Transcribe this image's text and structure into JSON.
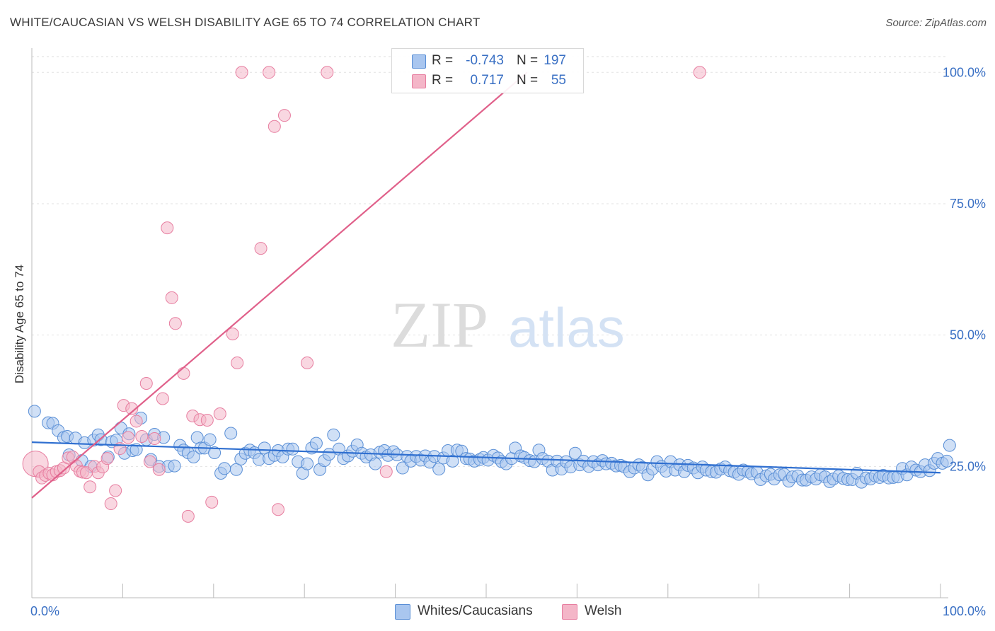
{
  "header": {
    "title": "WHITE/CAUCASIAN VS WELSH DISABILITY AGE 65 TO 74 CORRELATION CHART",
    "source": "Source: ZipAtlas.com"
  },
  "watermark": {
    "zip": "ZIP",
    "atlas": "atlas"
  },
  "legend_top": {
    "rows": [
      {
        "r_label": "R =",
        "r_value": "-0.743",
        "n_label": "N =",
        "n_value": "197",
        "color": "#a9c6ef"
      },
      {
        "r_label": "R =",
        "r_value": "0.717",
        "n_label": "N =",
        "n_value": "55",
        "color": "#f4b6c8"
      }
    ]
  },
  "legend_bottom": {
    "items": [
      {
        "label": "Whites/Caucasians",
        "color": "#a9c6ef"
      },
      {
        "label": "Welsh",
        "color": "#f4b6c8"
      }
    ]
  },
  "chart_data": {
    "type": "scatter",
    "title": "WHITE/CAUCASIAN VS WELSH DISABILITY AGE 65 TO 74 CORRELATION CHART",
    "xlabel": "",
    "ylabel": "Disability Age 65 to 74",
    "xlim": [
      0,
      100
    ],
    "ylim": [
      0,
      103
    ],
    "x_tick_labels": [
      {
        "value": 0,
        "label": "0.0%"
      },
      {
        "value": 100,
        "label": "100.0%"
      }
    ],
    "y_tick_labels": [
      {
        "value": 25,
        "label": "25.0%"
      },
      {
        "value": 50,
        "label": "50.0%"
      },
      {
        "value": 75,
        "label": "75.0%"
      },
      {
        "value": 100,
        "label": "100.0%"
      }
    ],
    "grid": "horizontal dashed",
    "legend_position": "top-center",
    "colors": {
      "whites_fill": "#a9c6ef",
      "whites_stroke": "#5a8fd6",
      "whites_line": "#2f6fd0",
      "welsh_fill": "#f4b6c8",
      "welsh_stroke": "#e77ea0",
      "welsh_line": "#e0608a",
      "axis_text": "#3a70c4"
    },
    "series": [
      {
        "name": "Whites/Caucasians",
        "r": -0.743,
        "n": 197,
        "trend": {
          "x": [
            0,
            100
          ],
          "y": [
            29.6,
            23.8
          ]
        },
        "points": [
          [
            0.3,
            35.5
          ],
          [
            1.8,
            33.3
          ],
          [
            2.3,
            33.2
          ],
          [
            2.9,
            31.8
          ],
          [
            3.5,
            30.5
          ],
          [
            3.9,
            30.7
          ],
          [
            4.1,
            27.2
          ],
          [
            4.8,
            30.4
          ],
          [
            5.5,
            26.1
          ],
          [
            5.8,
            29.5
          ],
          [
            6.5,
            25.0
          ],
          [
            6.8,
            30.0
          ],
          [
            7.3,
            31.0
          ],
          [
            7.6,
            30.1
          ],
          [
            8.4,
            26.8
          ],
          [
            8.8,
            29.7
          ],
          [
            9.3,
            30.0
          ],
          [
            9.8,
            32.3
          ],
          [
            10.2,
            27.5
          ],
          [
            10.7,
            31.2
          ],
          [
            11.1,
            28.0
          ],
          [
            11.5,
            28.2
          ],
          [
            12.0,
            34.2
          ],
          [
            12.6,
            30.1
          ],
          [
            13.1,
            26.3
          ],
          [
            13.5,
            31.1
          ],
          [
            14.0,
            25.0
          ],
          [
            14.5,
            30.5
          ],
          [
            15.0,
            25.0
          ],
          [
            15.7,
            25.1
          ],
          [
            16.3,
            29.0
          ],
          [
            16.7,
            28.1
          ],
          [
            17.2,
            27.6
          ],
          [
            17.8,
            26.8
          ],
          [
            18.2,
            30.5
          ],
          [
            18.6,
            28.5
          ],
          [
            19.0,
            28.5
          ],
          [
            19.6,
            30.1
          ],
          [
            20.1,
            27.6
          ],
          [
            20.8,
            23.7
          ],
          [
            21.2,
            24.6
          ],
          [
            21.9,
            31.3
          ],
          [
            22.5,
            24.4
          ],
          [
            23.0,
            26.4
          ],
          [
            23.5,
            27.5
          ],
          [
            24.0,
            28.1
          ],
          [
            24.5,
            27.6
          ],
          [
            25.0,
            26.3
          ],
          [
            25.6,
            28.5
          ],
          [
            26.1,
            26.5
          ],
          [
            26.7,
            27.1
          ],
          [
            27.1,
            28.0
          ],
          [
            27.6,
            26.8
          ],
          [
            28.2,
            28.3
          ],
          [
            28.7,
            28.3
          ],
          [
            29.3,
            25.9
          ],
          [
            29.8,
            23.7
          ],
          [
            30.3,
            25.5
          ],
          [
            30.8,
            28.5
          ],
          [
            31.3,
            29.4
          ],
          [
            31.7,
            24.4
          ],
          [
            32.2,
            26.1
          ],
          [
            32.7,
            27.3
          ],
          [
            33.2,
            31.0
          ],
          [
            33.8,
            28.3
          ],
          [
            34.3,
            26.5
          ],
          [
            34.8,
            27.0
          ],
          [
            35.3,
            27.9
          ],
          [
            35.8,
            29.1
          ],
          [
            36.3,
            27.5
          ],
          [
            36.8,
            26.8
          ],
          [
            37.3,
            27.2
          ],
          [
            37.8,
            25.5
          ],
          [
            38.3,
            27.7
          ],
          [
            38.8,
            28.0
          ],
          [
            39.2,
            27.1
          ],
          [
            39.8,
            27.8
          ],
          [
            40.2,
            27.2
          ],
          [
            40.8,
            24.7
          ],
          [
            41.3,
            26.9
          ],
          [
            41.7,
            26.0
          ],
          [
            42.3,
            26.9
          ],
          [
            42.8,
            26.2
          ],
          [
            43.3,
            27.0
          ],
          [
            43.8,
            25.8
          ],
          [
            44.3,
            26.9
          ],
          [
            44.8,
            24.5
          ],
          [
            45.3,
            26.6
          ],
          [
            45.8,
            28.0
          ],
          [
            46.3,
            26.0
          ],
          [
            46.8,
            28.1
          ],
          [
            47.3,
            27.9
          ],
          [
            47.8,
            26.5
          ],
          [
            48.2,
            26.4
          ],
          [
            48.7,
            26.0
          ],
          [
            49.3,
            26.3
          ],
          [
            49.7,
            26.7
          ],
          [
            50.2,
            26.2
          ],
          [
            50.8,
            27.1
          ],
          [
            51.3,
            26.6
          ],
          [
            51.7,
            25.9
          ],
          [
            52.2,
            25.5
          ],
          [
            52.8,
            26.5
          ],
          [
            53.2,
            28.5
          ],
          [
            53.8,
            27.0
          ],
          [
            54.2,
            26.7
          ],
          [
            54.8,
            26.1
          ],
          [
            55.3,
            25.9
          ],
          [
            55.8,
            28.1
          ],
          [
            56.2,
            26.5
          ],
          [
            56.8,
            26.0
          ],
          [
            57.3,
            24.3
          ],
          [
            57.8,
            26.0
          ],
          [
            58.3,
            24.5
          ],
          [
            58.8,
            25.9
          ],
          [
            59.3,
            24.9
          ],
          [
            59.8,
            27.5
          ],
          [
            60.3,
            25.3
          ],
          [
            60.7,
            26.0
          ],
          [
            61.3,
            25.0
          ],
          [
            61.8,
            25.9
          ],
          [
            62.3,
            25.3
          ],
          [
            62.8,
            26.1
          ],
          [
            63.2,
            25.5
          ],
          [
            63.8,
            25.6
          ],
          [
            64.3,
            25.1
          ],
          [
            64.8,
            25.2
          ],
          [
            65.2,
            24.9
          ],
          [
            65.8,
            24.0
          ],
          [
            66.3,
            24.7
          ],
          [
            66.8,
            25.3
          ],
          [
            67.2,
            24.8
          ],
          [
            67.8,
            23.4
          ],
          [
            68.3,
            24.5
          ],
          [
            68.8,
            25.9
          ],
          [
            69.3,
            25.0
          ],
          [
            69.8,
            24.1
          ],
          [
            70.3,
            25.9
          ],
          [
            70.8,
            24.3
          ],
          [
            71.3,
            25.3
          ],
          [
            71.8,
            24.0
          ],
          [
            72.2,
            25.2
          ],
          [
            72.8,
            24.7
          ],
          [
            73.3,
            23.8
          ],
          [
            73.8,
            24.9
          ],
          [
            74.2,
            24.3
          ],
          [
            74.8,
            24.0
          ],
          [
            75.3,
            23.9
          ],
          [
            75.8,
            24.5
          ],
          [
            76.3,
            24.9
          ],
          [
            76.8,
            24.2
          ],
          [
            77.3,
            23.9
          ],
          [
            77.8,
            23.5
          ],
          [
            78.3,
            24.3
          ],
          [
            78.8,
            24.0
          ],
          [
            79.2,
            23.6
          ],
          [
            79.8,
            23.9
          ],
          [
            80.2,
            22.5
          ],
          [
            80.8,
            23.2
          ],
          [
            81.3,
            23.5
          ],
          [
            81.7,
            22.6
          ],
          [
            82.3,
            23.4
          ],
          [
            82.8,
            23.5
          ],
          [
            83.3,
            22.2
          ],
          [
            83.7,
            23.0
          ],
          [
            84.3,
            23.2
          ],
          [
            84.8,
            22.4
          ],
          [
            85.2,
            22.4
          ],
          [
            85.8,
            23.0
          ],
          [
            86.3,
            22.6
          ],
          [
            86.8,
            23.4
          ],
          [
            87.3,
            23.0
          ],
          [
            87.8,
            22.1
          ],
          [
            88.2,
            22.6
          ],
          [
            88.8,
            23.2
          ],
          [
            89.3,
            22.7
          ],
          [
            89.8,
            22.5
          ],
          [
            90.3,
            22.5
          ],
          [
            90.8,
            23.7
          ],
          [
            91.3,
            22.0
          ],
          [
            91.8,
            22.8
          ],
          [
            92.3,
            22.6
          ],
          [
            92.8,
            23.2
          ],
          [
            93.3,
            22.9
          ],
          [
            93.7,
            23.3
          ],
          [
            94.3,
            22.8
          ],
          [
            94.8,
            22.9
          ],
          [
            95.3,
            23.0
          ],
          [
            95.8,
            24.6
          ],
          [
            96.3,
            23.4
          ],
          [
            96.8,
            24.9
          ],
          [
            97.3,
            24.3
          ],
          [
            97.8,
            24.0
          ],
          [
            98.3,
            25.3
          ],
          [
            98.8,
            24.2
          ],
          [
            99.3,
            25.6
          ],
          [
            99.7,
            26.5
          ],
          [
            100.2,
            25.6
          ],
          [
            100.7,
            26.0
          ],
          [
            101.0,
            29.0
          ]
        ]
      },
      {
        "name": "Welsh",
        "r": 0.717,
        "n": 55,
        "trend": {
          "x": [
            0,
            54.5
          ],
          "y": [
            19.0,
            100.0
          ]
        },
        "points": [
          [
            0.4,
            25.5
          ],
          [
            0.8,
            24.0
          ],
          [
            1.1,
            22.8
          ],
          [
            1.5,
            23.3
          ],
          [
            1.9,
            23.7
          ],
          [
            2.3,
            23.4
          ],
          [
            2.7,
            24.0
          ],
          [
            3.1,
            24.2
          ],
          [
            3.5,
            24.7
          ],
          [
            4.0,
            26.6
          ],
          [
            4.5,
            26.8
          ],
          [
            4.9,
            25.1
          ],
          [
            5.3,
            24.1
          ],
          [
            5.6,
            23.9
          ],
          [
            6.0,
            23.8
          ],
          [
            6.4,
            21.1
          ],
          [
            6.9,
            25.0
          ],
          [
            7.3,
            23.8
          ],
          [
            7.8,
            24.9
          ],
          [
            8.3,
            26.5
          ],
          [
            8.7,
            17.9
          ],
          [
            9.2,
            20.4
          ],
          [
            9.7,
            28.4
          ],
          [
            10.1,
            36.6
          ],
          [
            10.6,
            30.5
          ],
          [
            11.0,
            36.0
          ],
          [
            11.5,
            33.6
          ],
          [
            12.1,
            30.7
          ],
          [
            12.6,
            40.8
          ],
          [
            13.0,
            25.9
          ],
          [
            13.5,
            30.3
          ],
          [
            14.0,
            24.4
          ],
          [
            14.4,
            37.9
          ],
          [
            14.9,
            70.4
          ],
          [
            15.4,
            57.1
          ],
          [
            15.8,
            52.2
          ],
          [
            16.7,
            42.7
          ],
          [
            17.2,
            15.5
          ],
          [
            17.7,
            34.6
          ],
          [
            18.5,
            33.9
          ],
          [
            19.3,
            33.8
          ],
          [
            19.8,
            18.2
          ],
          [
            20.7,
            35.0
          ],
          [
            22.1,
            50.2
          ],
          [
            22.6,
            44.7
          ],
          [
            23.1,
            100.0
          ],
          [
            25.2,
            66.5
          ],
          [
            26.1,
            100.0
          ],
          [
            26.7,
            89.7
          ],
          [
            27.1,
            16.8
          ],
          [
            27.8,
            91.8
          ],
          [
            30.3,
            44.7
          ],
          [
            32.5,
            100.0
          ],
          [
            39.0,
            24.0
          ],
          [
            73.5,
            100.0
          ]
        ]
      }
    ]
  }
}
